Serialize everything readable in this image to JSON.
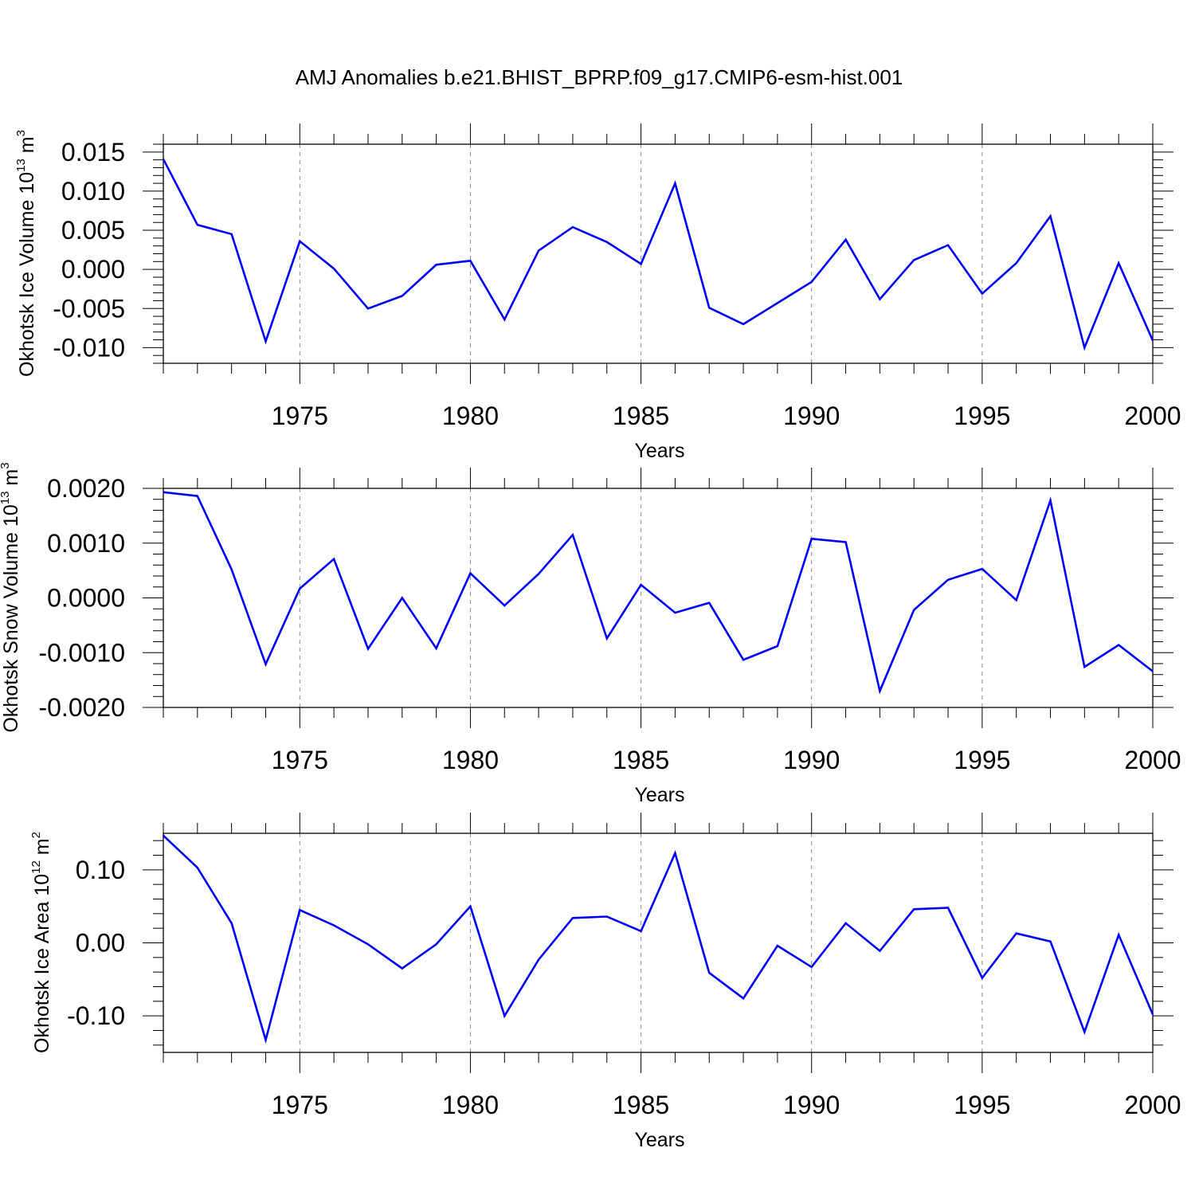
{
  "title": "AMJ Anomalies b.e21.BHIST_BPRP.f09_g17.CMIP6-esm-hist.001",
  "colors": {
    "line": "#0000ff",
    "axis": "#000000",
    "grid": "#888888"
  },
  "chart_data": [
    {
      "type": "line",
      "xlabel": "Years",
      "ylabel": {
        "text": "Okhotsk Ice Volume 10",
        "sup": "13",
        "unit": " m",
        "unit_sup": "3"
      },
      "xlim": [
        1971,
        2000
      ],
      "ylim": [
        -0.012,
        0.016
      ],
      "yticks": [
        0.015,
        0.01,
        0.005,
        0.0,
        -0.005,
        -0.01
      ],
      "ytick_labels": [
        "0.015",
        "0.010",
        "0.005",
        "0.000",
        "-0.005",
        "-0.010"
      ],
      "xticks": [
        1975,
        1980,
        1985,
        1990,
        1995,
        2000
      ],
      "xtick_labels": [
        "1975",
        "1980",
        "1985",
        "1990",
        "1995",
        "2000"
      ],
      "grid": "vertical dashed at major x ticks",
      "x": [
        1971,
        1972,
        1973,
        1974,
        1975,
        1976,
        1977,
        1978,
        1979,
        1980,
        1981,
        1982,
        1983,
        1984,
        1985,
        1986,
        1987,
        1988,
        1989,
        1990,
        1991,
        1992,
        1993,
        1994,
        1995,
        1996,
        1997,
        1998,
        1999,
        2000
      ],
      "values": [
        0.0141,
        0.0057,
        0.0045,
        -0.0092,
        0.0036,
        0.0001,
        -0.005,
        -0.0034,
        0.0006,
        0.0011,
        -0.0064,
        0.0024,
        0.0054,
        0.0035,
        0.0007,
        0.011,
        -0.0049,
        -0.007,
        -0.0043,
        -0.0016,
        0.0038,
        -0.0038,
        0.0012,
        0.0031,
        -0.0031,
        0.0008,
        0.0068,
        -0.01,
        0.0008,
        -0.0091
      ]
    },
    {
      "type": "line",
      "xlabel": "Years",
      "ylabel": {
        "text": "Okhotsk Snow Volume 10",
        "sup": "13",
        "unit": " m",
        "unit_sup": "3"
      },
      "xlim": [
        1971,
        2000
      ],
      "ylim": [
        -0.002,
        0.002
      ],
      "yticks": [
        0.002,
        0.001,
        0.0,
        -0.001,
        -0.002
      ],
      "ytick_labels": [
        "0.0020",
        "0.0010",
        "0.0000",
        "-0.0010",
        "-0.0020"
      ],
      "xticks": [
        1975,
        1980,
        1985,
        1990,
        1995,
        2000
      ],
      "xtick_labels": [
        "1975",
        "1980",
        "1985",
        "1990",
        "1995",
        "2000"
      ],
      "grid": "vertical dashed at major x ticks",
      "x": [
        1971,
        1972,
        1973,
        1974,
        1975,
        1976,
        1977,
        1978,
        1979,
        1980,
        1981,
        1982,
        1983,
        1984,
        1985,
        1986,
        1987,
        1988,
        1989,
        1990,
        1991,
        1992,
        1993,
        1994,
        1995,
        1996,
        1997,
        1998,
        1999,
        2000
      ],
      "values": [
        0.00193,
        0.00186,
        0.00052,
        -0.00121,
        0.00017,
        0.00071,
        -0.00093,
        0.0,
        -0.00092,
        0.00045,
        -0.00014,
        0.00044,
        0.00115,
        -0.00074,
        0.00024,
        -0.00027,
        -9e-05,
        -0.00113,
        -0.00088,
        0.00108,
        0.00102,
        -0.0017,
        -0.00022,
        0.00033,
        0.00053,
        -4e-05,
        0.00178,
        -0.00126,
        -0.00086,
        -0.00134
      ]
    },
    {
      "type": "line",
      "xlabel": "Years",
      "ylabel": {
        "text": "Okhotsk Ice Area 10",
        "sup": "12",
        "unit": " m",
        "unit_sup": "2"
      },
      "xlim": [
        1971,
        2000
      ],
      "ylim": [
        -0.15,
        0.15
      ],
      "yticks": [
        0.1,
        0.0,
        -0.1
      ],
      "ytick_labels": [
        "0.10",
        "0.00",
        "-0.10"
      ],
      "xticks": [
        1975,
        1980,
        1985,
        1990,
        1995,
        2000
      ],
      "xtick_labels": [
        "1975",
        "1980",
        "1985",
        "1990",
        "1995",
        "2000"
      ],
      "grid": "vertical dashed at major x ticks",
      "x": [
        1971,
        1972,
        1973,
        1974,
        1975,
        1976,
        1977,
        1978,
        1979,
        1980,
        1981,
        1982,
        1983,
        1984,
        1985,
        1986,
        1987,
        1988,
        1989,
        1990,
        1991,
        1992,
        1993,
        1994,
        1995,
        1996,
        1997,
        1998,
        1999,
        2000
      ],
      "values": [
        0.147,
        0.103,
        0.027,
        -0.133,
        0.045,
        0.024,
        -0.002,
        -0.035,
        -0.002,
        0.05,
        -0.1,
        -0.023,
        0.034,
        0.036,
        0.016,
        0.123,
        -0.041,
        -0.076,
        -0.004,
        -0.033,
        0.027,
        -0.011,
        0.046,
        0.048,
        -0.048,
        0.013,
        0.002,
        -0.122,
        0.011,
        -0.098
      ]
    }
  ]
}
